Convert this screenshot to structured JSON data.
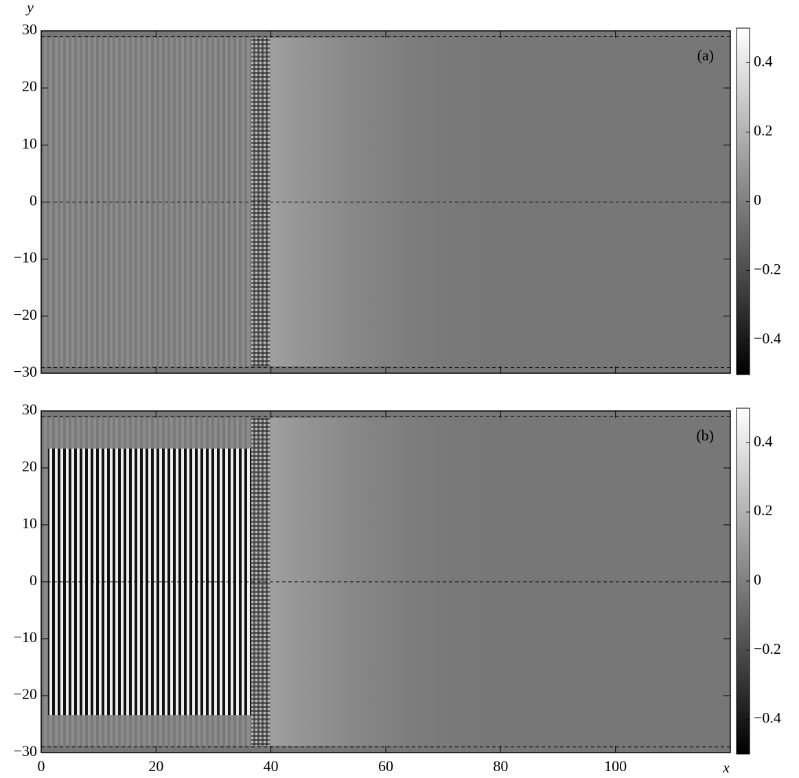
{
  "chart_data": [
    {
      "type": "heatmap",
      "ylabel": "y",
      "annotation": "(a)",
      "xlim": [
        0,
        120
      ],
      "ylim": [
        -30,
        30
      ],
      "xticks": [
        0,
        20,
        40,
        60,
        80,
        100
      ],
      "yticks": [
        {
          "value": -30,
          "label": "−30"
        },
        {
          "value": -20,
          "label": "−20"
        },
        {
          "value": -10,
          "label": "−10"
        },
        0,
        10,
        20,
        30
      ],
      "dashed_lines": [
        -29,
        0,
        29
      ],
      "clim": [
        -0.5,
        0.5
      ],
      "cticks": [
        {
          "value": -0.4,
          "label": "−0.4"
        },
        {
          "value": -0.2,
          "label": "−0.2"
        },
        0,
        0.2,
        0.4
      ]
    },
    {
      "type": "heatmap",
      "xlabel": "x",
      "annotation": "(b)",
      "xlim": [
        0,
        120
      ],
      "ylim": [
        -30,
        30
      ],
      "xticks": [
        0,
        20,
        40,
        60,
        80,
        100
      ],
      "yticks": [
        {
          "value": -30,
          "label": "−30"
        },
        {
          "value": -20,
          "label": "−20"
        },
        {
          "value": -10,
          "label": "−10"
        },
        0,
        10,
        20,
        30
      ],
      "dashed_lines": [
        -29,
        0,
        29
      ],
      "clim": [
        -0.5,
        0.5
      ],
      "cticks": [
        {
          "value": -0.4,
          "label": "−0.4"
        },
        {
          "value": -0.2,
          "label": "−0.2"
        },
        0,
        0.2,
        0.4
      ]
    }
  ]
}
